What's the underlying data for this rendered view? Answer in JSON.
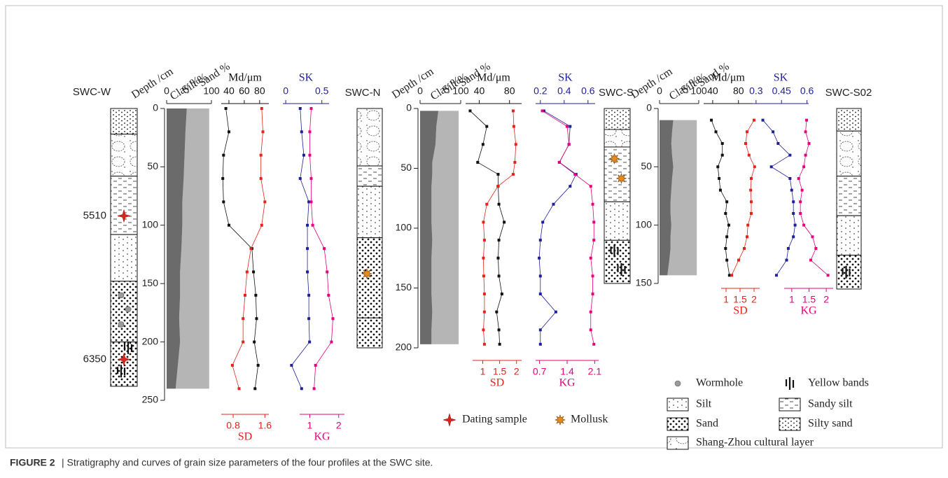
{
  "caption": {
    "label": "FIGURE 2",
    "text": "| Stratigraphy and curves of grain size parameters of the four profiles at the SWC site."
  },
  "legend": {
    "symbols": [
      "Dating sample",
      "Mollusk"
    ],
    "items": [
      "Wormhole",
      "Yellow bands",
      "Silt",
      "Sandy silt",
      "Sand",
      "Silty sand",
      "Shang-Zhou cultural layer"
    ]
  },
  "chart_data": [
    {
      "type": "profile",
      "name": "SWC-W",
      "depth_label": "Depth /cm",
      "ylim": [
        0,
        250
      ],
      "yticks": [
        0,
        50,
        100,
        150,
        200,
        250
      ],
      "layers": [
        {
          "top": 0,
          "bottom": 22,
          "kind": "Silty sand"
        },
        {
          "top": 22,
          "bottom": 58,
          "kind": "Shang-Zhou cultural layer"
        },
        {
          "top": 58,
          "bottom": 108,
          "kind": "Sandy silt"
        },
        {
          "top": 108,
          "bottom": 148,
          "kind": "Silt"
        },
        {
          "top": 148,
          "bottom": 200,
          "kind": "Sand"
        },
        {
          "top": 200,
          "bottom": 238,
          "kind": "Sand"
        }
      ],
      "symbols": [
        {
          "depth": 160,
          "kind": "Wormhole"
        },
        {
          "depth": 172,
          "kind": "Wormhole"
        },
        {
          "depth": 185,
          "kind": "Wormhole"
        },
        {
          "depth": 205,
          "kind": "Yellow bands"
        },
        {
          "depth": 225,
          "kind": "Yellow bands"
        }
      ],
      "dates": [
        {
          "depth": 92,
          "age": 5510
        },
        {
          "depth": 215,
          "age": 6350
        }
      ],
      "depths": [
        0,
        20,
        40,
        60,
        80,
        100,
        120,
        140,
        160,
        180,
        200,
        220,
        240
      ],
      "composition": {
        "labels": [
          "Clay %",
          "Silt %",
          "Sand %"
        ],
        "xlim": [
          0,
          100
        ],
        "xticks": [
          0,
          100
        ],
        "series": [
          {
            "name": "Clay %",
            "color": "#6b6b6b",
            "values": [
              45,
              42,
              40,
              38,
              35,
              35,
              33,
              30,
              30,
              28,
              30,
              25,
              20
            ]
          },
          {
            "name": "Silt %",
            "color": "#b5b5b5",
            "values": [
              50,
              53,
              55,
              57,
              60,
              60,
              62,
              65,
              65,
              67,
              65,
              70,
              75
            ]
          }
        ]
      },
      "curves": [
        {
          "name": "Md/μm",
          "color": "#111111",
          "axis": "top",
          "xlim": [
            30,
            92
          ],
          "xticks": [
            40,
            60,
            80
          ],
          "values": [
            36,
            40,
            33,
            32,
            33,
            40,
            70,
            72,
            75,
            76,
            73,
            78,
            74
          ]
        },
        {
          "name": "SD",
          "color": "#e3241b",
          "axis": "bottom",
          "xlim": [
            0.5,
            1.7
          ],
          "xticks": [
            0.8,
            1.6
          ],
          "values": [
            1.52,
            1.55,
            1.5,
            1.5,
            1.6,
            1.52,
            1.25,
            1.15,
            1.1,
            1.05,
            1.05,
            0.78,
            0.95
          ]
        },
        {
          "name": "SK",
          "color": "#1f1f9a",
          "axis": "top",
          "xlim": [
            -0.04,
            0.6
          ],
          "xticks": [
            0,
            0.5
          ],
          "values": [
            0.2,
            0.22,
            0.25,
            0.2,
            0.32,
            0.3,
            0.3,
            0.3,
            0.32,
            0.32,
            0.33,
            0.08,
            0.22
          ]
        },
        {
          "name": "KG",
          "color": "#e5007d",
          "axis": "bottom",
          "xlim": [
            0.65,
            2.2
          ],
          "xticks": [
            1,
            2
          ],
          "values": [
            1.05,
            1.0,
            1.0,
            1.05,
            1.05,
            1.1,
            1.5,
            1.6,
            1.65,
            1.8,
            1.75,
            1.2,
            1.15
          ]
        }
      ]
    },
    {
      "type": "profile",
      "name": "SWC-N",
      "depth_label": "Depth /cm",
      "ylim": [
        0,
        200
      ],
      "yticks": [
        0,
        50,
        100,
        150,
        200
      ],
      "layers": [
        {
          "top": 0,
          "bottom": 48,
          "kind": "Shang-Zhou cultural layer"
        },
        {
          "top": 48,
          "bottom": 65,
          "kind": "Sandy silt"
        },
        {
          "top": 65,
          "bottom": 108,
          "kind": "Silt"
        },
        {
          "top": 108,
          "bottom": 175,
          "kind": "Sand"
        },
        {
          "top": 175,
          "bottom": 200,
          "kind": "Sand"
        }
      ],
      "symbols": [
        {
          "depth": 138,
          "kind": "Mollusk"
        }
      ],
      "dates": [],
      "depths": [
        2,
        15,
        30,
        45,
        55,
        65,
        80,
        95,
        110,
        125,
        140,
        155,
        170,
        185,
        197
      ],
      "composition": {
        "labels": [
          "Clay %",
          "Silt %",
          "Sand %"
        ],
        "xlim": [
          0,
          100
        ],
        "xticks": [
          0,
          100
        ],
        "series": [
          {
            "name": "Clay %",
            "color": "#6b6b6b",
            "values": [
              45,
              40,
              38,
              30,
              30,
              28,
              28,
              28,
              30,
              28,
              28,
              28,
              30,
              28,
              28
            ]
          },
          {
            "name": "Silt %",
            "color": "#b5b5b5",
            "values": [
              50,
              55,
              57,
              65,
              65,
              67,
              67,
              67,
              65,
              67,
              67,
              67,
              65,
              67,
              67
            ]
          }
        ]
      },
      "curves": [
        {
          "name": "Md/μm",
          "color": "#111111",
          "axis": "top",
          "xlim": [
            22,
            96
          ],
          "xticks": [
            40,
            80
          ],
          "values": [
            28,
            50,
            45,
            38,
            65,
            65,
            66,
            73,
            66,
            65,
            66,
            70,
            63,
            66,
            67
          ]
        },
        {
          "name": "SD",
          "color": "#e3241b",
          "axis": "bottom",
          "xlim": [
            0.7,
            2.15
          ],
          "xticks": [
            1,
            1.5,
            2
          ],
          "values": [
            1.9,
            1.92,
            1.98,
            1.95,
            1.9,
            1.45,
            1.12,
            1.02,
            1.05,
            1.02,
            1.03,
            1.05,
            1.05,
            1.02,
            1.05
          ]
        },
        {
          "name": "SK",
          "color": "#1f1f9a",
          "axis": "top",
          "xlim": [
            0.16,
            0.66
          ],
          "xticks": [
            0.2,
            0.4,
            0.6
          ],
          "values": [
            0.23,
            0.45,
            0.44,
            0.36,
            0.5,
            0.45,
            0.31,
            0.22,
            0.2,
            0.19,
            0.2,
            0.2,
            0.33,
            0.2,
            0.2
          ]
        },
        {
          "name": "KG",
          "color": "#e5007d",
          "axis": "bottom",
          "xlim": [
            0.6,
            2.2
          ],
          "xticks": [
            0.7,
            1.4,
            2.1
          ],
          "values": [
            0.77,
            1.4,
            1.45,
            1.2,
            1.6,
            2.0,
            2.05,
            2.08,
            2.08,
            2.0,
            2.05,
            2.05,
            2.0,
            2.0,
            2.08
          ]
        }
      ]
    },
    {
      "type": "profile",
      "name": "SWC-S",
      "depth_label": "Depth /cm",
      "ylim": [
        0,
        150
      ],
      "yticks": [
        0,
        50,
        100,
        150
      ],
      "layers": [
        {
          "top": 0,
          "bottom": 18,
          "kind": "Silty sand"
        },
        {
          "top": 18,
          "bottom": 33,
          "kind": "Shang-Zhou cultural layer"
        },
        {
          "top": 33,
          "bottom": 80,
          "kind": "Sandy silt"
        },
        {
          "top": 80,
          "bottom": 113,
          "kind": "Silt"
        },
        {
          "top": 113,
          "bottom": 150,
          "kind": "Sand"
        }
      ],
      "symbols": [
        {
          "depth": 43,
          "kind": "Mollusk"
        },
        {
          "depth": 60,
          "kind": "Mollusk"
        },
        {
          "depth": 122,
          "kind": "Yellow bands"
        },
        {
          "depth": 138,
          "kind": "Yellow bands"
        }
      ],
      "dates": [],
      "depths": [
        10,
        20,
        30,
        40,
        50,
        60,
        70,
        80,
        90,
        100,
        110,
        120,
        130,
        143
      ],
      "composition": {
        "labels": [
          "Clay %",
          "Silt %",
          "Sand %"
        ],
        "xlim": [
          0,
          100
        ],
        "xticks": [
          0,
          100
        ],
        "series": [
          {
            "name": "Clay %",
            "color": "#6b6b6b",
            "values": [
              35,
              32,
              30,
              32,
              35,
              32,
              30,
              28,
              28,
              30,
              28,
              28,
              25,
              20
            ]
          },
          {
            "name": "Silt %",
            "color": "#b5b5b5",
            "values": [
              60,
              63,
              65,
              63,
              60,
              63,
              65,
              67,
              67,
              65,
              67,
              67,
              70,
              75
            ]
          }
        ]
      },
      "curves": [
        {
          "name": "Md/μm",
          "color": "#111111",
          "axis": "top",
          "xlim": [
            26,
            102
          ],
          "xticks": [
            40,
            80
          ],
          "values": [
            38,
            45,
            55,
            55,
            48,
            50,
            52,
            62,
            60,
            65,
            62,
            60,
            62,
            66
          ]
        },
        {
          "name": "SD",
          "color": "#e3241b",
          "axis": "bottom",
          "xlim": [
            0.825,
            2.2
          ],
          "xticks": [
            1,
            1.5,
            2
          ],
          "values": [
            2.0,
            1.75,
            1.7,
            1.82,
            2.02,
            1.9,
            1.88,
            1.9,
            1.9,
            1.78,
            1.75,
            1.65,
            1.45,
            1.2
          ]
        },
        {
          "name": "SK",
          "color": "#1f1f9a",
          "axis": "top",
          "xlim": [
            0.28,
            0.61
          ],
          "xticks": [
            0.3,
            0.45,
            0.6
          ],
          "values": [
            0.34,
            0.4,
            0.43,
            0.5,
            0.39,
            0.5,
            0.51,
            0.52,
            0.52,
            0.53,
            0.52,
            0.49,
            0.48,
            0.42
          ]
        },
        {
          "name": "KG",
          "color": "#e5007d",
          "axis": "bottom",
          "xlim": [
            0.78,
            2.2
          ],
          "xticks": [
            1,
            1.5,
            2
          ],
          "values": [
            1.43,
            1.4,
            1.5,
            1.4,
            1.35,
            1.2,
            1.3,
            1.25,
            1.25,
            1.35,
            1.6,
            1.7,
            1.55,
            2.05
          ]
        }
      ]
    },
    {
      "type": "stratigraphy",
      "name": "SWC-S02",
      "ylim": [
        0,
        160
      ],
      "layers": [
        {
          "top": 0,
          "bottom": 20,
          "kind": "Silty sand"
        },
        {
          "top": 20,
          "bottom": 60,
          "kind": "Shang-Zhou cultural layer"
        },
        {
          "top": 60,
          "bottom": 95,
          "kind": "Sandy silt"
        },
        {
          "top": 95,
          "bottom": 130,
          "kind": "Silt"
        },
        {
          "top": 130,
          "bottom": 160,
          "kind": "Sand"
        }
      ],
      "symbols": [
        {
          "depth": 145,
          "kind": "Yellow bands"
        }
      ],
      "dates": []
    }
  ]
}
